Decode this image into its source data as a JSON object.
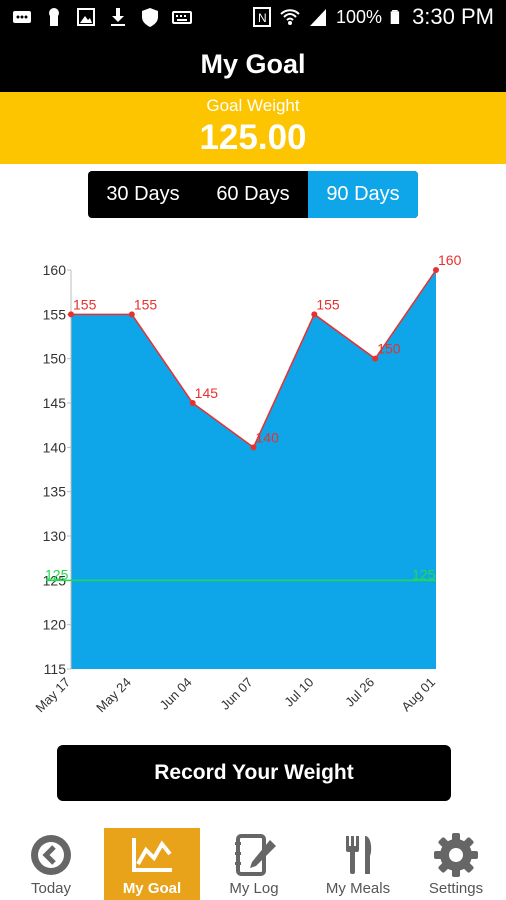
{
  "status_bar": {
    "battery": "100%",
    "time": "3:30 PM",
    "left_icons": [
      "message-icon",
      "keyhole-icon",
      "image-icon",
      "download-icon",
      "shield-icon",
      "keyboard-icon"
    ],
    "right_icons": [
      "nfc-icon",
      "wifi-icon",
      "signal-icon",
      "battery-icon"
    ]
  },
  "header": {
    "title": "My Goal"
  },
  "goal": {
    "label": "Goal Weight",
    "value": "125.00"
  },
  "range_tabs": [
    {
      "label": "30 Days",
      "active": false
    },
    {
      "label": "60 Days",
      "active": false
    },
    {
      "label": "90 Days",
      "active": true
    }
  ],
  "chart_data": {
    "type": "area",
    "categories": [
      "May 17",
      "May 24",
      "Jun 04",
      "Jun 07",
      "Jul 10",
      "Jul 26",
      "Aug 01"
    ],
    "values": [
      155,
      155,
      145,
      140,
      155,
      150,
      160
    ],
    "data_labels": [
      "155",
      "155",
      "145",
      "140",
      "155",
      "150",
      "160"
    ],
    "ylim": [
      115,
      160
    ],
    "yticks": [
      115,
      120,
      125,
      130,
      135,
      140,
      145,
      150,
      155,
      160
    ],
    "goal_line": {
      "value": 125,
      "label": "125"
    },
    "colors": {
      "fill": "#0ea6e9",
      "line": "#e8302f",
      "goal": "#1edc4b"
    },
    "grid": false,
    "legend": "none"
  },
  "record_button": {
    "label": "Record Your Weight"
  },
  "tabs": [
    {
      "label": "Today",
      "icon": "back-circle-icon",
      "active": false
    },
    {
      "label": "My Goal",
      "icon": "chart-line-icon",
      "active": true
    },
    {
      "label": "My Log",
      "icon": "notebook-pencil-icon",
      "active": false
    },
    {
      "label": "My Meals",
      "icon": "fork-knife-icon",
      "active": false
    },
    {
      "label": "Settings",
      "icon": "gear-icon",
      "active": false
    }
  ],
  "colors": {
    "accent_yellow": "#fcc500",
    "accent_blue": "#0ea6e9",
    "tab_active": "#e8a31b"
  }
}
